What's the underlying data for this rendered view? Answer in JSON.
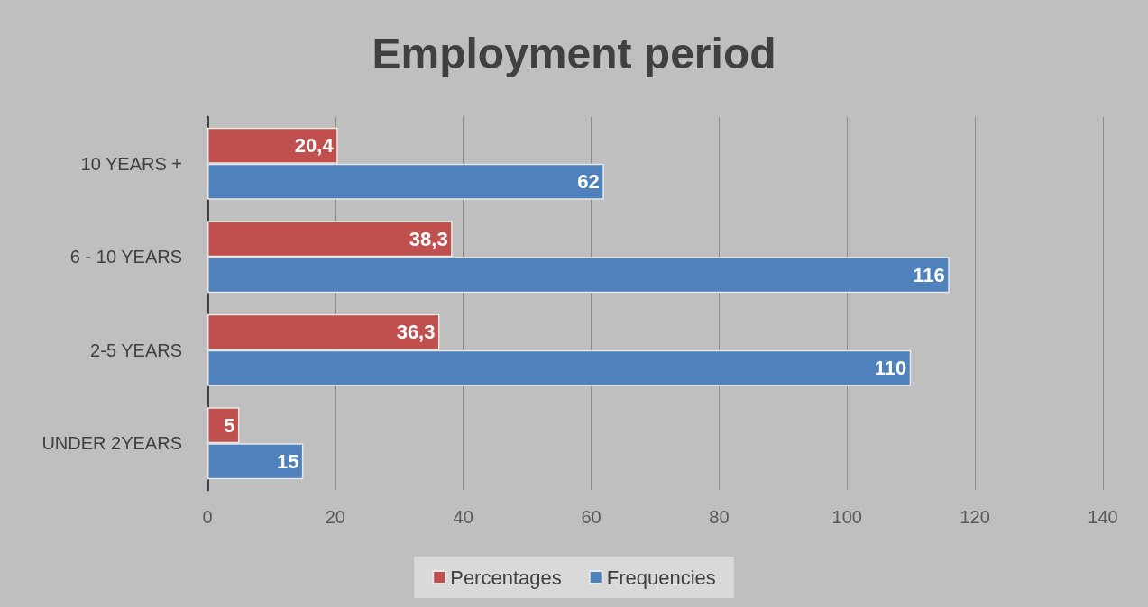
{
  "chart_data": {
    "type": "bar",
    "orientation": "horizontal",
    "title": "Employment period",
    "categories": [
      "10 YEARS +",
      "6 - 10 YEARS",
      "2-5 YEARS",
      "UNDER 2YEARS"
    ],
    "series": [
      {
        "name": "Percentages",
        "color": "#c0504d",
        "values": [
          20.4,
          38.3,
          36.3,
          5
        ],
        "value_labels": [
          "20,4",
          "38,3",
          "36,3",
          "5"
        ]
      },
      {
        "name": "Frequencies",
        "color": "#4f81bd",
        "values": [
          62,
          116,
          110,
          15
        ],
        "value_labels": [
          "62",
          "116",
          "110",
          "15"
        ]
      }
    ],
    "xlim": [
      0,
      140
    ],
    "xticks": [
      0,
      20,
      40,
      60,
      80,
      100,
      120,
      140
    ],
    "grid": "x",
    "legend": "bottom"
  }
}
